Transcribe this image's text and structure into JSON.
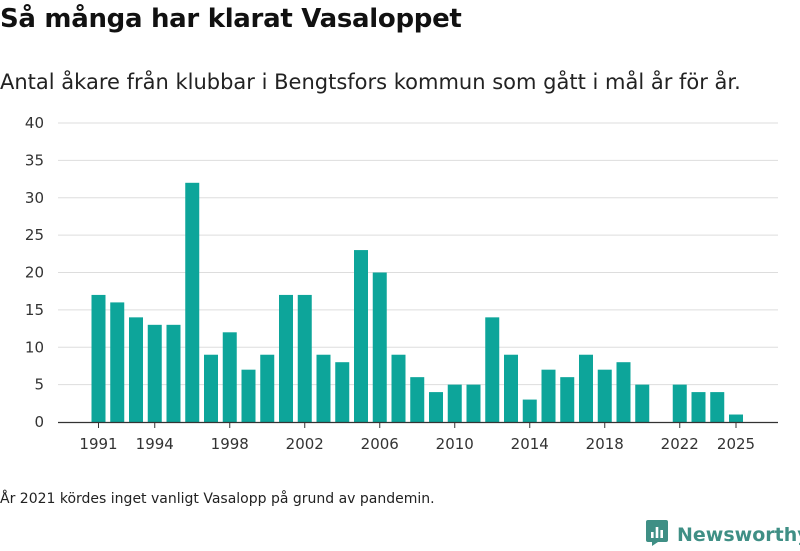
{
  "title": "Så många har klarat Vasaloppet",
  "subtitle": "Antal åkare från klubbar i Bengtsfors kommun som gått i mål år för år.",
  "footnote": "År 2021 kördes inget vanligt Vasalopp på grund av pandemin.",
  "brand": {
    "name": "Newsworthy",
    "icon": "newsworthy-logo-icon"
  },
  "colors": {
    "bar": "#0da59a",
    "grid": "#dddddd",
    "axis": "#333333",
    "brand": "#3f8f85"
  },
  "chart_data": {
    "type": "bar",
    "title": "Så många har klarat Vasaloppet",
    "xlabel": "",
    "ylabel": "",
    "ylim": [
      0,
      40
    ],
    "yticks": [
      0,
      5,
      10,
      15,
      20,
      25,
      30,
      35,
      40
    ],
    "xticks": [
      1991,
      1994,
      1998,
      2002,
      2006,
      2010,
      2014,
      2018,
      2022,
      2025
    ],
    "grid": true,
    "categories": [
      1991,
      1992,
      1993,
      1994,
      1995,
      1996,
      1997,
      1998,
      1999,
      2000,
      2001,
      2002,
      2003,
      2004,
      2005,
      2006,
      2007,
      2008,
      2009,
      2010,
      2011,
      2012,
      2013,
      2014,
      2015,
      2016,
      2017,
      2018,
      2019,
      2020,
      2021,
      2022,
      2023,
      2024,
      2025
    ],
    "values": [
      17,
      16,
      14,
      13,
      13,
      32,
      9,
      12,
      7,
      9,
      17,
      17,
      9,
      8,
      23,
      20,
      9,
      6,
      4,
      5,
      5,
      14,
      9,
      3,
      7,
      6,
      9,
      7,
      8,
      5,
      null,
      5,
      4,
      4,
      1
    ]
  }
}
